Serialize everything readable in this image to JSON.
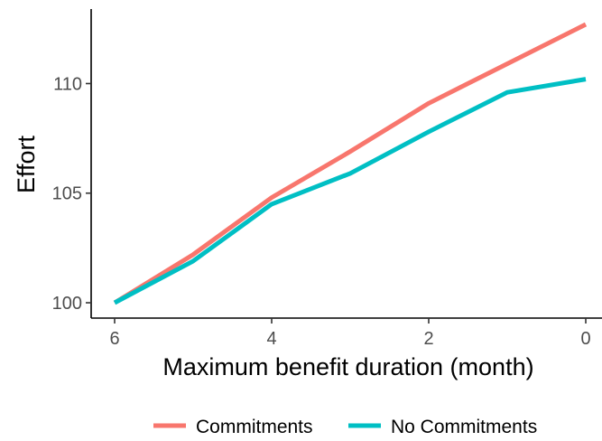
{
  "chart_data": {
    "type": "line",
    "title": "",
    "xlabel": "Maximum benefit duration (month)",
    "ylabel": "Effort",
    "x": [
      6,
      5,
      4,
      3,
      2,
      1,
      0
    ],
    "x_reversed": true,
    "xlim": [
      0,
      6.25
    ],
    "ylim": [
      99.3,
      113.4
    ],
    "x_ticks": [
      6,
      4,
      2,
      0
    ],
    "y_ticks": [
      100,
      105,
      110
    ],
    "x_tick_labels": [
      "6",
      "4",
      "2",
      "0"
    ],
    "y_tick_labels": [
      "100",
      "105",
      "110"
    ],
    "grid": false,
    "legend_position": "bottom",
    "series": [
      {
        "name": "Commitments",
        "color": "#F8766D",
        "values": [
          100.0,
          102.2,
          104.8,
          106.9,
          109.1,
          110.9,
          112.7
        ]
      },
      {
        "name": "No Commitments",
        "color": "#00BFC4",
        "values": [
          100.0,
          101.9,
          104.5,
          105.9,
          107.8,
          109.6,
          110.2
        ]
      }
    ]
  }
}
